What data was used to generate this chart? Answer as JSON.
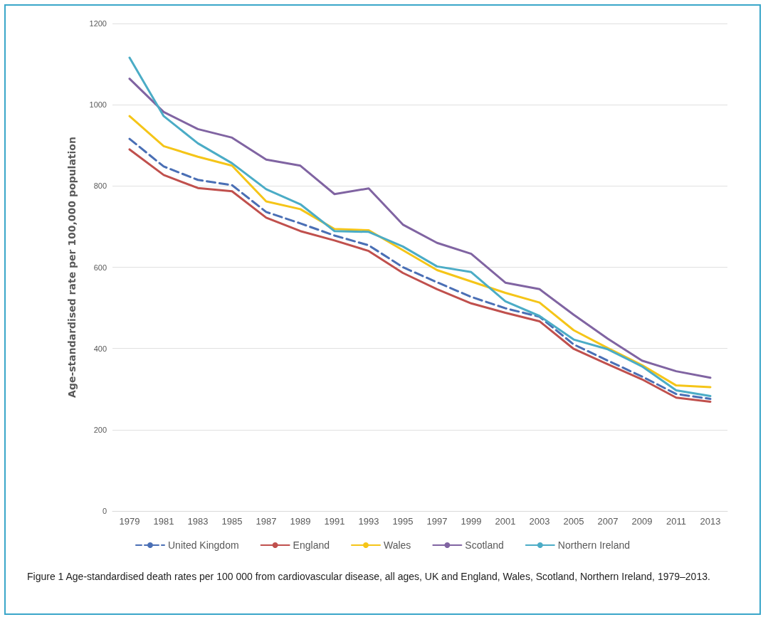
{
  "chart_data": {
    "type": "line",
    "ylabel": "Age-standardised rate per 100,000 population",
    "categories": [
      "1979",
      "1981",
      "1983",
      "1985",
      "1987",
      "1989",
      "1991",
      "1993",
      "1995",
      "1997",
      "1999",
      "2001",
      "2003",
      "2005",
      "2007",
      "2009",
      "2011",
      "2013"
    ],
    "series": [
      {
        "name": "United Kingdom",
        "color": "#4a6fb5",
        "line_style": "dashed",
        "values": [
          916,
          848,
          815,
          802,
          736,
          708,
          678,
          654,
          600,
          563,
          527,
          499,
          478,
          410,
          370,
          331,
          288,
          276
        ]
      },
      {
        "name": "England",
        "color": "#c0504d",
        "values": [
          890,
          827,
          795,
          787,
          722,
          689,
          666,
          640,
          586,
          546,
          511,
          488,
          467,
          399,
          361,
          324,
          279,
          269
        ]
      },
      {
        "name": "Wales",
        "color": "#f5c518",
        "values": [
          972,
          898,
          872,
          850,
          762,
          743,
          694,
          691,
          642,
          593,
          565,
          537,
          513,
          445,
          401,
          359,
          309,
          305
        ]
      },
      {
        "name": "Scotland",
        "color": "#8064a2",
        "values": [
          1064,
          982,
          940,
          919,
          865,
          850,
          780,
          794,
          705,
          660,
          633,
          562,
          546,
          483,
          424,
          370,
          344,
          328
        ]
      },
      {
        "name": "Northern Ireland",
        "color": "#4bacc6",
        "values": [
          1116,
          972,
          905,
          856,
          792,
          755,
          689,
          687,
          651,
          602,
          588,
          516,
          480,
          422,
          398,
          356,
          297,
          283
        ]
      }
    ],
    "ylim": [
      0,
      1200
    ],
    "yticks": [
      0,
      200,
      400,
      600,
      800,
      1000,
      1200
    ],
    "grid": "y",
    "legend": "bottom",
    "marker": "none",
    "line_style": "solid",
    "annotations": [
      "Figure 1   Age-standardised death rates per 100 000 from cardiovascular disease, all ages, UK and England, Wales, Scotland, Northern Ireland, 1979–2013."
    ]
  }
}
